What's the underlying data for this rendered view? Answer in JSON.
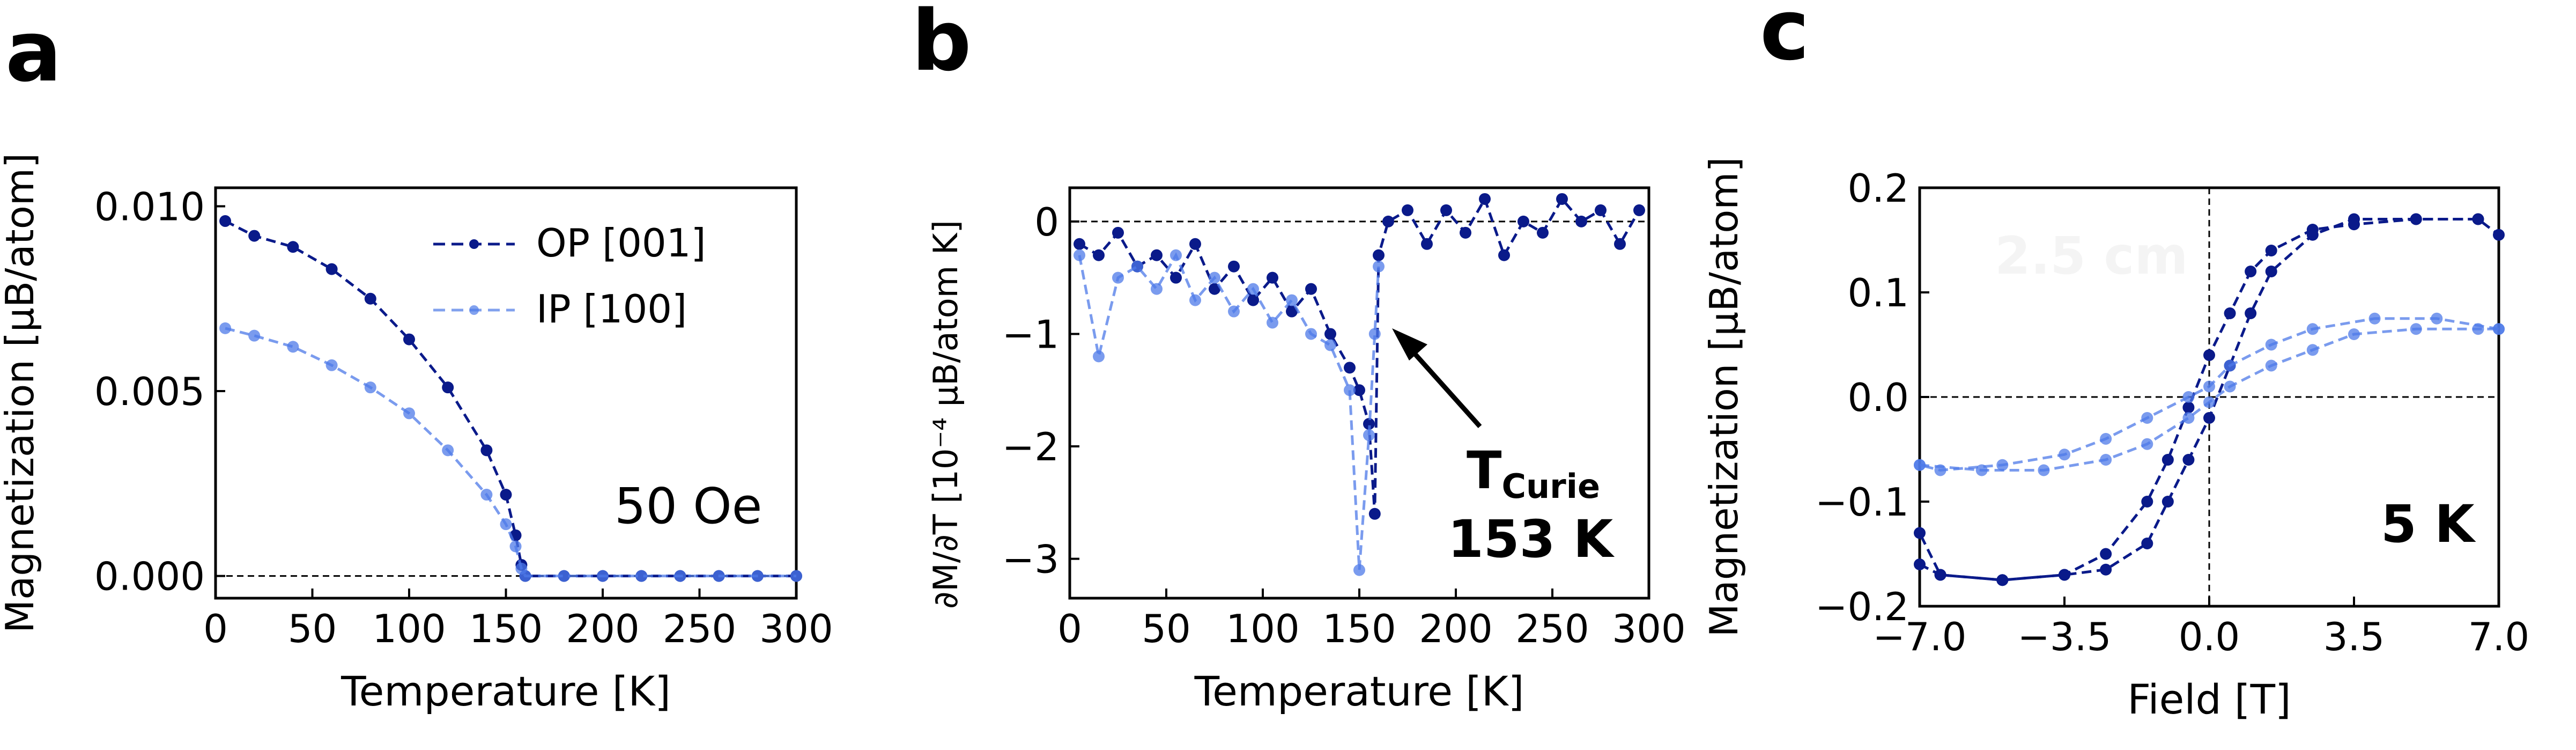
{
  "colors": {
    "op": "#0a1a8a",
    "ip": "#4d7ae8",
    "axis": "#000000"
  },
  "panels": {
    "a": {
      "letter": "a",
      "annotation": "50 Oe"
    },
    "b": {
      "letter": "b",
      "annotation_t": "T",
      "annotation_sub": "Curie",
      "annotation_value": "153 K"
    },
    "c": {
      "letter": "c",
      "annotation": "5 K",
      "watermark": "2.5 cm"
    }
  },
  "chart_data": [
    {
      "id": "a",
      "type": "line",
      "xlabel": "Temperature [K]",
      "ylabel": "Magnetization [μB/atom]",
      "xlim": [
        0,
        300
      ],
      "ylim": [
        -0.0006,
        0.0105
      ],
      "xticks": [
        0,
        50,
        100,
        150,
        200,
        250,
        300
      ],
      "xtick_labels": [
        "0",
        "50",
        "100",
        "150",
        "200",
        "250",
        "300"
      ],
      "yticks": [
        0.0,
        0.005,
        0.01
      ],
      "ytick_labels": [
        "0.000",
        "0.005",
        "0.010"
      ],
      "reference_lines": [
        {
          "axis": "y",
          "value": 0,
          "style": "dashed"
        }
      ],
      "legend": {
        "position": "top-right",
        "entries": [
          "OP [001]",
          "IP [100]"
        ]
      },
      "series": [
        {
          "name": "OP [001]",
          "x": [
            5,
            20,
            40,
            60,
            80,
            100,
            120,
            140,
            150,
            155,
            158,
            160,
            180,
            200,
            220,
            240,
            260,
            280,
            300
          ],
          "y": [
            0.0096,
            0.0092,
            0.0089,
            0.0083,
            0.0075,
            0.0064,
            0.0051,
            0.0034,
            0.0022,
            0.0011,
            0.0003,
            0.0,
            0.0,
            0.0,
            0.0,
            0.0,
            0.0,
            0.0,
            0.0
          ]
        },
        {
          "name": "IP [100]",
          "x": [
            5,
            20,
            40,
            60,
            80,
            100,
            120,
            140,
            150,
            155,
            158,
            160,
            180,
            200,
            220,
            240,
            260,
            280,
            300
          ],
          "y": [
            0.0067,
            0.0065,
            0.0062,
            0.0057,
            0.0051,
            0.0044,
            0.0034,
            0.0022,
            0.0014,
            0.0008,
            0.0002,
            0.0,
            0.0,
            0.0,
            0.0,
            0.0,
            0.0,
            0.0,
            0.0
          ]
        }
      ]
    },
    {
      "id": "b",
      "type": "line",
      "xlabel": "Temperature [K]",
      "ylabel": "∂M/∂T [10⁻⁴ μB/atom K]",
      "xlim": [
        0,
        300
      ],
      "ylim": [
        -3.35,
        0.3
      ],
      "xticks": [
        0,
        50,
        100,
        150,
        200,
        250,
        300
      ],
      "xtick_labels": [
        "0",
        "50",
        "100",
        "150",
        "200",
        "250",
        "300"
      ],
      "yticks": [
        -3,
        -2,
        -1,
        0
      ],
      "ytick_labels": [
        "−3",
        "−2",
        "−1",
        "0"
      ],
      "reference_lines": [
        {
          "axis": "y",
          "value": 0,
          "style": "dashed"
        }
      ],
      "series": [
        {
          "name": "OP [001]",
          "x": [
            5,
            15,
            25,
            35,
            45,
            55,
            65,
            75,
            85,
            95,
            105,
            115,
            125,
            135,
            145,
            150,
            155,
            158,
            160,
            165,
            175,
            185,
            195,
            205,
            215,
            225,
            235,
            245,
            255,
            265,
            275,
            285,
            295
          ],
          "y": [
            -0.2,
            -0.3,
            -0.1,
            -0.4,
            -0.3,
            -0.5,
            -0.2,
            -0.6,
            -0.4,
            -0.7,
            -0.5,
            -0.8,
            -0.6,
            -1.0,
            -1.3,
            -1.5,
            -1.8,
            -2.6,
            -0.3,
            0.0,
            0.1,
            -0.2,
            0.1,
            -0.1,
            0.2,
            -0.3,
            0.0,
            -0.1,
            0.2,
            0.0,
            0.1,
            -0.2,
            0.1
          ]
        },
        {
          "name": "IP [100]",
          "x": [
            5,
            15,
            25,
            35,
            45,
            55,
            65,
            75,
            85,
            95,
            105,
            115,
            125,
            135,
            145,
            150,
            155,
            158,
            160
          ],
          "y": [
            -0.3,
            -1.2,
            -0.5,
            -0.4,
            -0.6,
            -0.3,
            -0.7,
            -0.5,
            -0.8,
            -0.6,
            -0.9,
            -0.7,
            -1.0,
            -1.1,
            -1.5,
            -3.1,
            -1.9,
            -1.0,
            -0.4
          ]
        }
      ]
    },
    {
      "id": "c",
      "type": "line",
      "xlabel": "Field [T]",
      "ylabel": "Magnetization [μB/atom]",
      "xlim": [
        -7.0,
        7.0
      ],
      "ylim": [
        -0.2,
        0.2
      ],
      "xticks": [
        -7.0,
        -3.5,
        0.0,
        3.5,
        7.0
      ],
      "xtick_labels": [
        "−7.0",
        "−3.5",
        "0.0",
        "3.5",
        "7.0"
      ],
      "yticks": [
        -0.2,
        -0.1,
        0.0,
        0.1,
        0.2
      ],
      "ytick_labels": [
        "−0.2",
        "−0.1",
        "0.0",
        "0.1",
        "0.2"
      ],
      "reference_lines": [
        {
          "axis": "y",
          "value": 0,
          "style": "dashed"
        },
        {
          "axis": "x",
          "value": 0,
          "style": "dashed"
        }
      ],
      "series": [
        {
          "name": "OP [001] descending",
          "x": [
            6.5,
            5.0,
            3.5,
            2.5,
            1.5,
            1.0,
            0.5,
            0.0,
            -0.5,
            -1.0,
            -1.5,
            -2.5,
            -3.5,
            -5.0,
            -6.5,
            -7.0
          ],
          "y": [
            0.17,
            0.17,
            0.165,
            0.16,
            0.14,
            0.12,
            0.08,
            0.04,
            -0.01,
            -0.06,
            -0.1,
            -0.15,
            -0.17,
            -0.175,
            -0.17,
            -0.13
          ]
        },
        {
          "name": "OP [001] ascending",
          "x": [
            -7.0,
            -6.5,
            -5.0,
            -3.5,
            -2.5,
            -1.5,
            -1.0,
            -0.5,
            0.0,
            0.5,
            1.0,
            1.5,
            2.5,
            3.5,
            5.0,
            6.5,
            7.0
          ],
          "y": [
            -0.16,
            -0.17,
            -0.175,
            -0.17,
            -0.165,
            -0.14,
            -0.1,
            -0.06,
            -0.02,
            0.03,
            0.08,
            0.12,
            0.155,
            0.17,
            0.17,
            0.17,
            0.155
          ]
        },
        {
          "name": "IP [100] descending",
          "x": [
            7.0,
            5.5,
            4.0,
            2.5,
            1.5,
            0.5,
            0.0,
            -0.5,
            -1.5,
            -2.5,
            -3.5,
            -5.0,
            -6.5,
            -7.0
          ],
          "y": [
            0.065,
            0.075,
            0.075,
            0.065,
            0.05,
            0.03,
            0.01,
            0.0,
            -0.02,
            -0.04,
            -0.055,
            -0.065,
            -0.07,
            -0.065
          ]
        },
        {
          "name": "IP [100] ascending",
          "x": [
            -7.0,
            -5.5,
            -4.0,
            -2.5,
            -1.5,
            -0.5,
            0.0,
            0.5,
            1.5,
            2.5,
            3.5,
            5.0,
            6.5,
            7.0
          ],
          "y": [
            -0.065,
            -0.07,
            -0.07,
            -0.06,
            -0.045,
            -0.02,
            -0.005,
            0.01,
            0.03,
            0.045,
            0.06,
            0.065,
            0.065,
            0.065
          ]
        }
      ]
    }
  ]
}
